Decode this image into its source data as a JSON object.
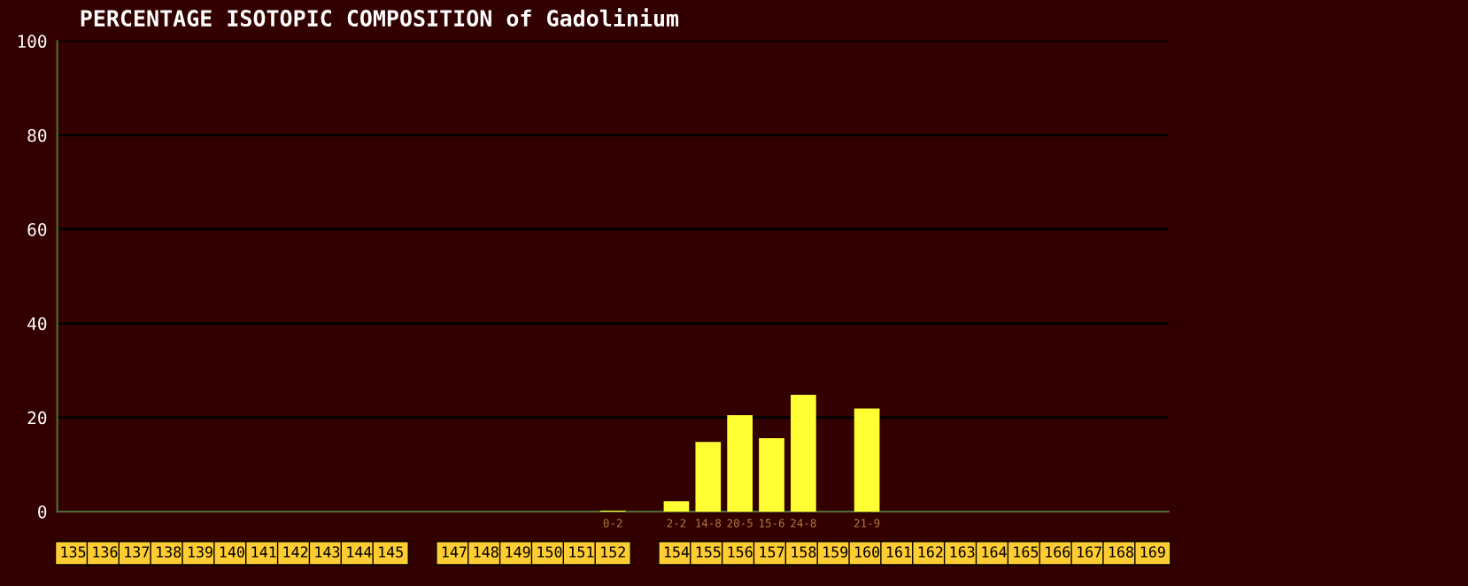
{
  "chart_data": {
    "type": "bar",
    "title": "PERCENTAGE ISOTOPIC COMPOSITION of Gadolinium",
    "categories": [
      "135",
      "136",
      "137",
      "138",
      "139",
      "140",
      "141",
      "142",
      "143",
      "144",
      "145",
      null,
      "147",
      "148",
      "149",
      "150",
      "151",
      "152",
      null,
      "154",
      "155",
      "156",
      "157",
      "158",
      "159",
      "160",
      "161",
      "162",
      "163",
      "164",
      "165",
      "166",
      "167",
      "168",
      "169"
    ],
    "values": [
      null,
      null,
      null,
      null,
      null,
      null,
      null,
      null,
      null,
      null,
      null,
      null,
      null,
      null,
      null,
      null,
      null,
      0.2,
      null,
      2.2,
      14.8,
      20.5,
      15.6,
      24.8,
      null,
      21.9,
      null,
      null,
      null,
      null,
      null,
      null,
      null,
      null,
      null
    ],
    "value_labels": [
      null,
      null,
      null,
      null,
      null,
      null,
      null,
      null,
      null,
      null,
      null,
      null,
      null,
      null,
      null,
      null,
      null,
      "0-2",
      null,
      "2-2",
      "14-8",
      "20-5",
      "15-6",
      "24-8",
      null,
      "21-9",
      null,
      null,
      null,
      null,
      null,
      null,
      null,
      null,
      null
    ],
    "color": "#ffff33",
    "ylim": [
      0,
      100
    ],
    "yticks": [
      0,
      20,
      40,
      60,
      80,
      100
    ],
    "grid": "y"
  }
}
